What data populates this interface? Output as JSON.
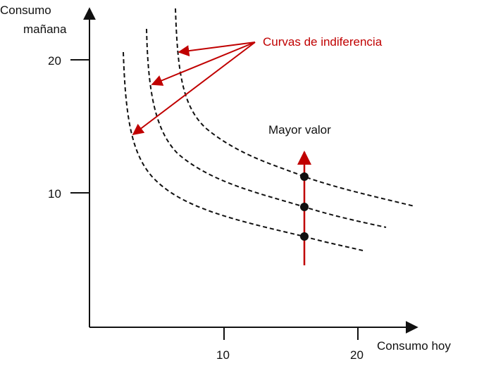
{
  "diagram": {
    "y_axis_label_line1": "Consumo",
    "y_axis_label_line2": "mañana",
    "x_axis_label": "Consumo hoy",
    "y_ticks": [
      "20",
      "10"
    ],
    "x_ticks": [
      "10",
      "20"
    ],
    "callout_label": "Curvas de indiferencia",
    "arrow_label": "Mayor valor",
    "callout_color": "#c00000",
    "arrow_color": "#c00000",
    "curve_color": "#111111",
    "curve_count": 3,
    "point_count": 3
  }
}
